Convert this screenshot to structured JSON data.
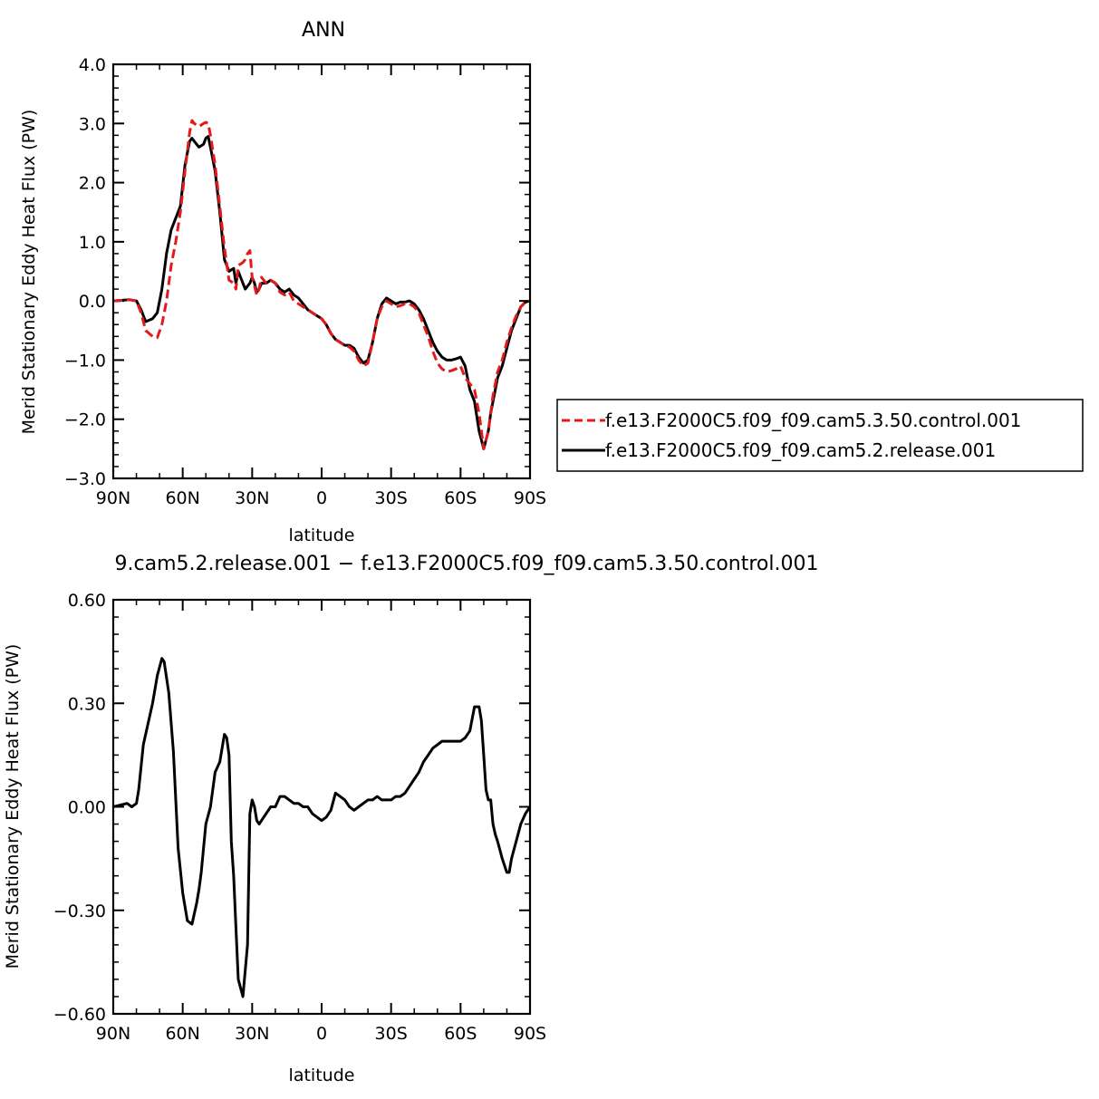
{
  "chart_data": [
    {
      "type": "line",
      "title": "ANN",
      "xlabel": "latitude",
      "ylabel": "Merid Stationary Eddy Heat Flux (PW)",
      "xlim": [
        90,
        -90
      ],
      "ylim": [
        -3.0,
        4.0
      ],
      "xticks": [
        90,
        60,
        30,
        0,
        -30,
        -60,
        -90
      ],
      "xtick_labels": [
        "90N",
        "60N",
        "30N",
        "0",
        "30S",
        "60S",
        "90S"
      ],
      "yticks": [
        4.0,
        3.0,
        2.0,
        1.0,
        0.0,
        -1.0,
        -2.0,
        -3.0
      ],
      "ytick_labels": [
        "4.0",
        "3.0",
        "2.0",
        "1.0",
        "0.0",
        "−1.0",
        "−2.0",
        "−3.0"
      ],
      "legend_position": "right",
      "series": [
        {
          "name": "f.e13.F2000C5.f09_f09.cam5.3.50.control.001",
          "color": "#e31a1c",
          "dash": "dashed",
          "x": [
            90,
            83,
            80,
            78,
            76,
            73,
            71,
            69,
            67,
            65,
            63,
            61,
            59,
            57,
            56,
            55,
            53,
            51,
            50,
            49,
            48,
            46,
            44,
            42,
            40,
            38,
            37,
            36,
            34,
            33,
            32,
            31,
            30,
            29,
            28,
            27,
            26,
            24,
            22,
            20,
            18,
            16,
            14,
            12,
            10,
            8,
            6,
            4,
            2,
            0,
            -2,
            -4,
            -6,
            -8,
            -10,
            -12,
            -14,
            -16,
            -18,
            -20,
            -22,
            -24,
            -26,
            -28,
            -30,
            -32,
            -34,
            -36,
            -38,
            -40,
            -42,
            -44,
            -46,
            -48,
            -50,
            -52,
            -54,
            -56,
            -58,
            -60,
            -62,
            -64,
            -66,
            -68,
            -70,
            -72,
            -73,
            -74,
            -75,
            -76,
            -78,
            -80,
            -82,
            -84,
            -86,
            -88,
            -90
          ],
          "y": [
            0.0,
            0.02,
            0.0,
            -0.2,
            -0.5,
            -0.6,
            -0.62,
            -0.4,
            0.0,
            0.6,
            1.0,
            1.5,
            2.2,
            2.85,
            3.05,
            3.0,
            2.95,
            3.0,
            3.02,
            3.0,
            2.8,
            2.3,
            1.6,
            0.9,
            0.35,
            0.3,
            0.2,
            0.6,
            0.65,
            0.7,
            0.8,
            0.85,
            0.4,
            0.25,
            0.1,
            0.2,
            0.4,
            0.3,
            0.35,
            0.3,
            0.15,
            0.1,
            0.15,
            0.0,
            -0.05,
            -0.1,
            -0.15,
            -0.2,
            -0.25,
            -0.3,
            -0.4,
            -0.55,
            -0.65,
            -0.7,
            -0.75,
            -0.78,
            -0.85,
            -1.0,
            -1.1,
            -1.05,
            -0.7,
            -0.3,
            -0.1,
            0.0,
            -0.05,
            -0.1,
            -0.08,
            -0.05,
            -0.05,
            -0.1,
            -0.2,
            -0.4,
            -0.6,
            -0.85,
            -1.05,
            -1.15,
            -1.2,
            -1.18,
            -1.15,
            -1.1,
            -1.3,
            -1.4,
            -1.5,
            -1.9,
            -2.5,
            -2.2,
            -1.9,
            -1.6,
            -1.4,
            -1.2,
            -1.0,
            -0.7,
            -0.45,
            -0.25,
            -0.1,
            -0.02,
            0.0
          ]
        },
        {
          "name": "f.e13.F2000C5.f09_f09.cam5.2.release.001",
          "color": "#000000",
          "dash": "solid",
          "x": [
            90,
            83,
            80,
            78,
            76,
            73,
            71,
            69,
            67,
            65,
            63,
            61,
            59,
            57,
            56,
            55,
            53,
            51,
            50,
            49,
            48,
            46,
            44,
            42,
            40,
            38,
            37,
            36,
            34,
            33,
            32,
            31,
            30,
            29,
            28,
            27,
            26,
            24,
            22,
            20,
            18,
            16,
            14,
            12,
            10,
            8,
            6,
            4,
            2,
            0,
            -2,
            -4,
            -6,
            -8,
            -10,
            -12,
            -14,
            -16,
            -18,
            -20,
            -22,
            -24,
            -26,
            -28,
            -30,
            -32,
            -34,
            -36,
            -38,
            -40,
            -42,
            -44,
            -46,
            -48,
            -50,
            -52,
            -54,
            -56,
            -58,
            -60,
            -62,
            -64,
            -66,
            -68,
            -70,
            -72,
            -73,
            -74,
            -75,
            -76,
            -78,
            -80,
            -82,
            -84,
            -86,
            -88,
            -90
          ],
          "y": [
            0.0,
            0.02,
            0.0,
            -0.15,
            -0.35,
            -0.3,
            -0.2,
            0.2,
            0.8,
            1.2,
            1.4,
            1.6,
            2.3,
            2.7,
            2.75,
            2.7,
            2.6,
            2.65,
            2.75,
            2.78,
            2.6,
            2.2,
            1.5,
            0.7,
            0.5,
            0.55,
            0.3,
            0.5,
            0.3,
            0.2,
            0.25,
            0.3,
            0.4,
            0.3,
            0.15,
            0.2,
            0.3,
            0.3,
            0.35,
            0.3,
            0.2,
            0.15,
            0.2,
            0.1,
            0.05,
            -0.05,
            -0.15,
            -0.2,
            -0.25,
            -0.3,
            -0.4,
            -0.55,
            -0.65,
            -0.7,
            -0.75,
            -0.75,
            -0.8,
            -0.95,
            -1.05,
            -1.0,
            -0.7,
            -0.3,
            -0.05,
            0.05,
            0.0,
            -0.05,
            -0.02,
            -0.02,
            0.0,
            -0.05,
            -0.15,
            -0.3,
            -0.5,
            -0.7,
            -0.85,
            -0.95,
            -1.0,
            -1.0,
            -0.98,
            -0.95,
            -1.1,
            -1.5,
            -1.7,
            -2.2,
            -2.5,
            -2.2,
            -1.9,
            -1.7,
            -1.5,
            -1.3,
            -1.1,
            -0.8,
            -0.5,
            -0.3,
            -0.1,
            -0.02,
            0.0
          ]
        }
      ]
    },
    {
      "type": "line",
      "title": "9.cam5.2.release.001  −  f.e13.F2000C5.f09_f09.cam5.3.50.control.001",
      "xlabel": "latitude",
      "ylabel": "Merid Stationary Eddy Heat Flux (PW)",
      "xlim": [
        90,
        -90
      ],
      "ylim": [
        -0.6,
        0.6
      ],
      "xticks": [
        90,
        60,
        30,
        0,
        -30,
        -60,
        -90
      ],
      "xtick_labels": [
        "90N",
        "60N",
        "30N",
        "0",
        "30S",
        "60S",
        "90S"
      ],
      "yticks": [
        0.6,
        0.3,
        0.0,
        -0.3,
        -0.6
      ],
      "ytick_labels": [
        "0.60",
        "0.30",
        "0.00",
        "−0.30",
        "−0.60"
      ],
      "series": [
        {
          "color": "#000000",
          "dash": "solid",
          "x": [
            90,
            84,
            82,
            80,
            79,
            77,
            75,
            73,
            71,
            69,
            68,
            66,
            64,
            62,
            60,
            58,
            56,
            54,
            53,
            52,
            50,
            48,
            46,
            44,
            42,
            41,
            40,
            39,
            38,
            37,
            36,
            34,
            32,
            31,
            30,
            29,
            28,
            27,
            26,
            24,
            22,
            20,
            18,
            16,
            14,
            12,
            10,
            8,
            6,
            4,
            2,
            0,
            -2,
            -4,
            -6,
            -8,
            -10,
            -12,
            -14,
            -16,
            -18,
            -20,
            -22,
            -24,
            -26,
            -28,
            -30,
            -32,
            -34,
            -36,
            -38,
            -40,
            -42,
            -44,
            -46,
            -48,
            -50,
            -52,
            -54,
            -56,
            -58,
            -60,
            -62,
            -64,
            -66,
            -68,
            -69,
            -70,
            -71,
            -72,
            -73,
            -74,
            -75,
            -76,
            -78,
            -80,
            -81,
            -82,
            -84,
            -86,
            -88,
            -90
          ],
          "y": [
            0.0,
            0.01,
            0.0,
            0.01,
            0.05,
            0.18,
            0.24,
            0.3,
            0.38,
            0.43,
            0.42,
            0.33,
            0.16,
            -0.12,
            -0.25,
            -0.33,
            -0.34,
            -0.28,
            -0.24,
            -0.19,
            -0.05,
            0.0,
            0.1,
            0.13,
            0.21,
            0.2,
            0.15,
            -0.1,
            -0.2,
            -0.35,
            -0.5,
            -0.55,
            -0.4,
            -0.02,
            0.02,
            0.0,
            -0.04,
            -0.05,
            -0.04,
            -0.02,
            0.0,
            0.0,
            0.03,
            0.03,
            0.02,
            0.01,
            0.01,
            0.0,
            0.0,
            -0.02,
            -0.03,
            -0.04,
            -0.03,
            -0.01,
            0.04,
            0.03,
            0.02,
            0.0,
            -0.01,
            0.0,
            0.01,
            0.02,
            0.02,
            0.03,
            0.02,
            0.02,
            0.02,
            0.03,
            0.03,
            0.04,
            0.06,
            0.08,
            0.1,
            0.13,
            0.15,
            0.17,
            0.18,
            0.19,
            0.19,
            0.19,
            0.19,
            0.19,
            0.2,
            0.22,
            0.29,
            0.29,
            0.25,
            0.15,
            0.05,
            0.02,
            0.02,
            -0.05,
            -0.08,
            -0.1,
            -0.15,
            -0.19,
            -0.19,
            -0.15,
            -0.1,
            -0.05,
            -0.02,
            0.0
          ]
        }
      ]
    }
  ]
}
